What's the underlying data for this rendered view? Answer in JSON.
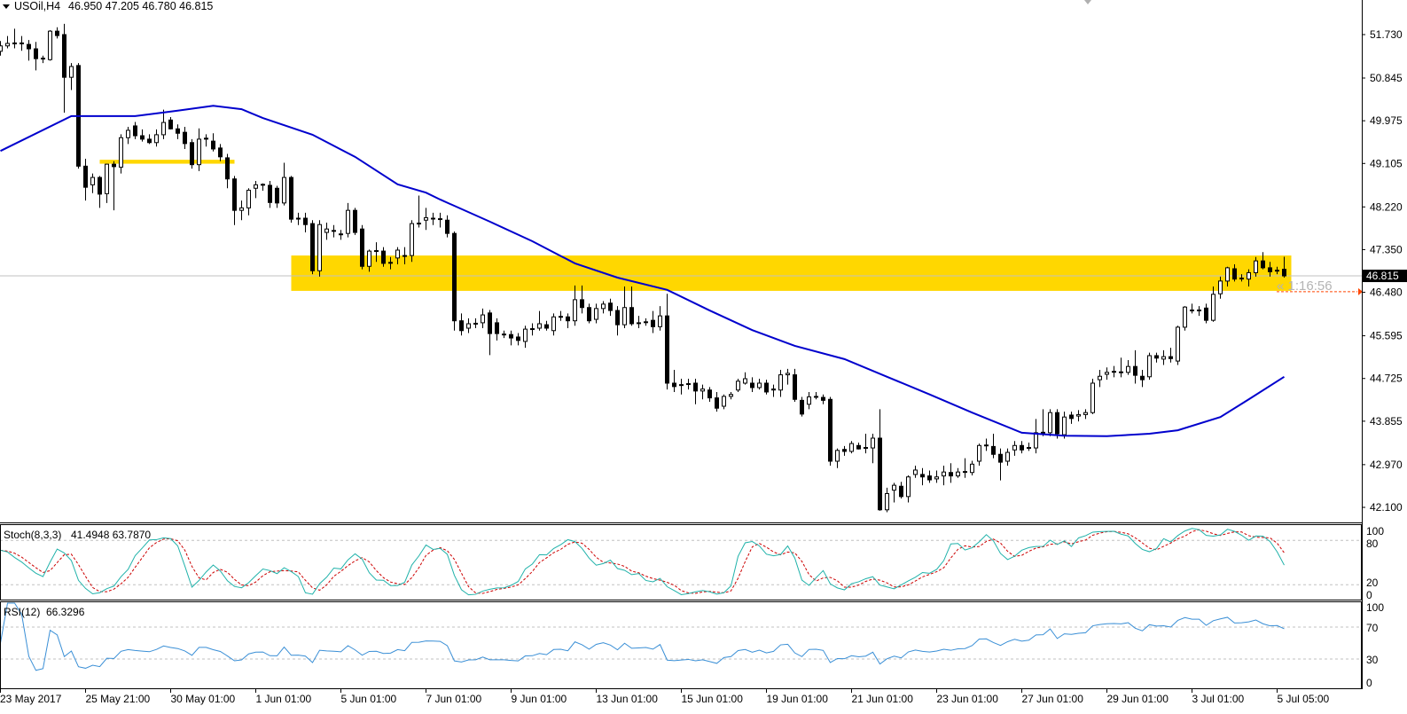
{
  "header": {
    "symbol_timeframe": "USOil,H4",
    "ohlc": "46.950 47.205 46.780 46.815",
    "menu_icon": "triangle-down-icon"
  },
  "stoch_header": {
    "label": "Stoch(8,3,3)",
    "values": "41.4948 63.7870"
  },
  "rsi_header": {
    "label": "RSI(12)",
    "values": "66.3296"
  },
  "current_price_label": "46.815",
  "countdown": "« 1:16:56",
  "colors": {
    "bull_body": "#ffffff",
    "bear_body": "#000000",
    "wick": "#000000",
    "moving_average": "#0000cd",
    "zone": "#ffd700",
    "stoch_main": "#20b2aa",
    "stoch_signal": "#cc0000",
    "rsi": "#3a8fd6",
    "bid_line": "#c0c0c0",
    "ask_line": "#ff4500",
    "level_line": "#c0c0c0",
    "price_box": "#000000"
  },
  "chart_data": {
    "type": "candlestick",
    "symbol": "USOil",
    "timeframe": "H4",
    "price_axis_ticks": [
      "51.730",
      "50.845",
      "49.975",
      "49.105",
      "48.220",
      "47.350",
      "46.480",
      "45.595",
      "44.725",
      "43.855",
      "42.970",
      "42.100"
    ],
    "time_axis_labels": [
      "23 May 2017",
      "25 May 21:00",
      "30 May 01:00",
      "1 Jun 01:00",
      "5 Jun 01:00",
      "7 Jun 01:00",
      "9 Jun 01:00",
      "13 Jun 01:00",
      "15 Jun 01:00",
      "19 Jun 01:00",
      "21 Jun 01:00",
      "23 Jun 01:00",
      "27 Jun 01:00",
      "29 Jun 01:00",
      "3 Jul 01:00",
      "5 Jul 05:00"
    ],
    "ylim": [
      41.95,
      52.45
    ],
    "current_price": 46.815,
    "candles_ohlc": [
      [
        51.39,
        51.6,
        51.3,
        51.5
      ],
      [
        51.5,
        51.7,
        51.45,
        51.55
      ],
      [
        51.55,
        51.85,
        51.45,
        51.56
      ],
      [
        51.56,
        51.7,
        51.4,
        51.55
      ],
      [
        51.53,
        51.62,
        51.2,
        51.44
      ],
      [
        51.44,
        51.58,
        51.0,
        51.24
      ],
      [
        51.24,
        51.3,
        51.15,
        51.25
      ],
      [
        51.22,
        51.82,
        51.2,
        51.8
      ],
      [
        51.8,
        51.88,
        51.65,
        51.71
      ],
      [
        51.73,
        51.95,
        50.14,
        50.86
      ],
      [
        50.86,
        51.15,
        50.6,
        51.08
      ],
      [
        51.1,
        51.15,
        49.0,
        49.05
      ],
      [
        49.05,
        49.2,
        48.35,
        48.62
      ],
      [
        48.67,
        48.9,
        48.5,
        48.82
      ],
      [
        48.82,
        48.85,
        48.2,
        48.48
      ],
      [
        48.49,
        49.1,
        48.3,
        49.09
      ],
      [
        49.09,
        49.15,
        48.15,
        49.04
      ],
      [
        49.03,
        49.7,
        48.9,
        49.63
      ],
      [
        49.63,
        49.85,
        49.5,
        49.78
      ],
      [
        49.87,
        49.95,
        49.6,
        49.67
      ],
      [
        49.67,
        49.8,
        49.55,
        49.6
      ],
      [
        49.6,
        49.7,
        49.5,
        49.53
      ],
      [
        49.53,
        49.8,
        49.45,
        49.69
      ],
      [
        49.69,
        50.2,
        49.6,
        49.94
      ],
      [
        49.99,
        50.05,
        49.8,
        49.81
      ],
      [
        49.81,
        49.9,
        49.6,
        49.72
      ],
      [
        49.74,
        49.85,
        49.4,
        49.51
      ],
      [
        49.53,
        49.6,
        49.0,
        49.08
      ],
      [
        49.08,
        49.82,
        48.95,
        49.6
      ],
      [
        49.62,
        49.7,
        49.45,
        49.6
      ],
      [
        49.56,
        49.72,
        49.35,
        49.4
      ],
      [
        49.42,
        49.5,
        49.15,
        49.24
      ],
      [
        49.22,
        49.3,
        48.6,
        48.79
      ],
      [
        48.79,
        48.85,
        47.85,
        48.15
      ],
      [
        48.15,
        48.35,
        47.95,
        48.2
      ],
      [
        48.2,
        48.6,
        48.05,
        48.56
      ],
      [
        48.6,
        48.75,
        48.4,
        48.67
      ],
      [
        48.67,
        48.7,
        48.55,
        48.68
      ],
      [
        48.66,
        48.75,
        48.2,
        48.31
      ],
      [
        48.6,
        48.65,
        48.2,
        48.3
      ],
      [
        48.3,
        49.12,
        48.25,
        48.82
      ],
      [
        48.82,
        48.85,
        47.9,
        47.97
      ],
      [
        47.99,
        48.1,
        47.85,
        47.98
      ],
      [
        47.99,
        48.1,
        47.7,
        47.86
      ],
      [
        47.88,
        47.95,
        46.85,
        46.92
      ],
      [
        46.92,
        47.95,
        46.8,
        47.86
      ],
      [
        47.7,
        47.9,
        47.55,
        47.77
      ],
      [
        47.74,
        47.85,
        47.6,
        47.73
      ],
      [
        47.66,
        47.75,
        47.55,
        47.67
      ],
      [
        47.68,
        48.3,
        47.6,
        48.15
      ],
      [
        48.15,
        48.2,
        47.65,
        47.7
      ],
      [
        47.77,
        47.85,
        46.95,
        47.01
      ],
      [
        47.01,
        47.35,
        46.9,
        47.32
      ],
      [
        47.32,
        47.5,
        47.1,
        47.33
      ],
      [
        47.32,
        47.4,
        47.0,
        47.07
      ],
      [
        47.08,
        47.2,
        46.95,
        47.09
      ],
      [
        47.18,
        47.4,
        47.05,
        47.34
      ],
      [
        47.22,
        47.4,
        47.05,
        47.23
      ],
      [
        47.23,
        47.95,
        47.1,
        47.88
      ],
      [
        47.88,
        48.45,
        47.8,
        47.89
      ],
      [
        47.95,
        48.2,
        47.75,
        48.0
      ],
      [
        47.98,
        48.1,
        47.85,
        47.99
      ],
      [
        47.98,
        48.1,
        47.8,
        47.97
      ],
      [
        47.95,
        48.05,
        47.6,
        47.68
      ],
      [
        47.68,
        47.72,
        45.7,
        45.9
      ],
      [
        45.9,
        46.05,
        45.6,
        45.7
      ],
      [
        45.75,
        45.95,
        45.65,
        45.84
      ],
      [
        45.84,
        45.95,
        45.75,
        45.85
      ],
      [
        45.86,
        46.15,
        45.75,
        46.02
      ],
      [
        46.06,
        46.12,
        45.2,
        45.64
      ],
      [
        45.86,
        45.95,
        45.5,
        45.64
      ],
      [
        45.62,
        45.7,
        45.55,
        45.63
      ],
      [
        45.62,
        45.7,
        45.4,
        45.55
      ],
      [
        45.57,
        45.65,
        45.4,
        45.5
      ],
      [
        45.48,
        45.8,
        45.35,
        45.73
      ],
      [
        45.73,
        45.85,
        45.6,
        45.74
      ],
      [
        45.75,
        46.1,
        45.7,
        45.84
      ],
      [
        45.82,
        45.9,
        45.7,
        45.75
      ],
      [
        45.7,
        46.05,
        45.6,
        45.98
      ],
      [
        45.98,
        46.1,
        45.9,
        45.99
      ],
      [
        45.98,
        46.05,
        45.75,
        45.9
      ],
      [
        45.9,
        46.62,
        45.8,
        46.33
      ],
      [
        46.33,
        46.62,
        46.05,
        46.17
      ],
      [
        46.17,
        46.25,
        45.85,
        45.9
      ],
      [
        45.93,
        46.25,
        45.85,
        46.15
      ],
      [
        46.15,
        46.3,
        46.05,
        46.24
      ],
      [
        46.26,
        46.35,
        46.0,
        46.11
      ],
      [
        46.11,
        46.2,
        45.6,
        45.82
      ],
      [
        45.82,
        46.6,
        45.75,
        46.17
      ],
      [
        46.17,
        46.6,
        45.8,
        45.84
      ],
      [
        45.86,
        46.0,
        45.75,
        45.86
      ],
      [
        45.87,
        45.95,
        45.8,
        45.88
      ],
      [
        45.91,
        46.1,
        45.65,
        45.78
      ],
      [
        45.78,
        46.2,
        45.7,
        46.0
      ],
      [
        46.0,
        46.45,
        44.5,
        44.63
      ],
      [
        44.63,
        44.9,
        44.45,
        44.56
      ],
      [
        44.6,
        44.72,
        44.4,
        44.59
      ],
      [
        44.61,
        44.72,
        44.5,
        44.62
      ],
      [
        44.63,
        44.72,
        44.2,
        44.47
      ],
      [
        44.47,
        44.6,
        44.3,
        44.51
      ],
      [
        44.49,
        44.55,
        44.25,
        44.33
      ],
      [
        44.33,
        44.45,
        44.05,
        44.12
      ],
      [
        44.16,
        44.4,
        44.1,
        44.36
      ],
      [
        44.36,
        44.45,
        44.3,
        44.4
      ],
      [
        44.49,
        44.72,
        44.45,
        44.67
      ],
      [
        44.63,
        44.85,
        44.6,
        44.72
      ],
      [
        44.63,
        44.75,
        44.45,
        44.54
      ],
      [
        44.54,
        44.72,
        44.5,
        44.63
      ],
      [
        44.63,
        44.7,
        44.4,
        44.45
      ],
      [
        44.49,
        44.6,
        44.35,
        44.51
      ],
      [
        44.49,
        44.9,
        44.35,
        44.8
      ],
      [
        44.8,
        44.92,
        44.6,
        44.83
      ],
      [
        44.8,
        44.92,
        44.25,
        44.3
      ],
      [
        44.28,
        44.35,
        43.95,
        44.0
      ],
      [
        44.2,
        44.45,
        44.1,
        44.35
      ],
      [
        44.35,
        44.45,
        44.3,
        44.36
      ],
      [
        44.34,
        44.4,
        44.2,
        44.28
      ],
      [
        44.3,
        44.35,
        42.95,
        43.04
      ],
      [
        43.04,
        43.3,
        42.9,
        43.26
      ],
      [
        43.28,
        43.35,
        43.15,
        43.24
      ],
      [
        43.24,
        43.45,
        43.2,
        43.4
      ],
      [
        43.36,
        43.42,
        43.28,
        43.29
      ],
      [
        43.31,
        43.6,
        43.2,
        43.32
      ],
      [
        43.31,
        43.6,
        43.0,
        43.51
      ],
      [
        43.51,
        44.1,
        42.03,
        42.05
      ],
      [
        42.05,
        42.5,
        42.0,
        42.38
      ],
      [
        42.45,
        42.6,
        42.2,
        42.55
      ],
      [
        42.53,
        42.62,
        42.28,
        42.32
      ],
      [
        42.32,
        42.75,
        42.2,
        42.72
      ],
      [
        42.77,
        42.95,
        42.7,
        42.86
      ],
      [
        42.77,
        42.9,
        42.55,
        42.72
      ],
      [
        42.74,
        42.85,
        42.6,
        42.66
      ],
      [
        42.68,
        42.85,
        42.6,
        42.72
      ],
      [
        42.74,
        42.95,
        42.55,
        42.82
      ],
      [
        42.81,
        43.0,
        42.6,
        42.74
      ],
      [
        42.74,
        42.9,
        42.7,
        42.82
      ],
      [
        42.82,
        43.1,
        42.7,
        42.83
      ],
      [
        42.81,
        43.05,
        42.75,
        42.98
      ],
      [
        43.04,
        43.4,
        42.95,
        43.36
      ],
      [
        43.36,
        43.5,
        43.25,
        43.37
      ],
      [
        43.34,
        43.6,
        43.1,
        43.18
      ],
      [
        43.18,
        43.3,
        42.65,
        43.02
      ],
      [
        43.04,
        43.3,
        42.95,
        43.22
      ],
      [
        43.27,
        43.45,
        43.15,
        43.36
      ],
      [
        43.36,
        43.45,
        43.2,
        43.27
      ],
      [
        43.31,
        43.42,
        43.25,
        43.32
      ],
      [
        43.31,
        43.9,
        43.2,
        43.62
      ],
      [
        43.62,
        44.1,
        43.55,
        43.63
      ],
      [
        43.62,
        44.1,
        43.55,
        44.03
      ],
      [
        44.03,
        44.1,
        43.5,
        43.6
      ],
      [
        43.58,
        44.05,
        43.5,
        43.94
      ],
      [
        43.98,
        44.05,
        43.8,
        43.91
      ],
      [
        43.96,
        44.08,
        43.85,
        43.99
      ],
      [
        43.99,
        44.1,
        43.9,
        44.03
      ],
      [
        44.03,
        44.72,
        44.0,
        44.63
      ],
      [
        44.7,
        44.9,
        44.55,
        44.77
      ],
      [
        44.81,
        44.95,
        44.7,
        44.85
      ],
      [
        44.86,
        44.98,
        44.75,
        44.87
      ],
      [
        44.85,
        45.15,
        44.75,
        44.86
      ],
      [
        44.85,
        45.1,
        44.8,
        44.97
      ],
      [
        44.97,
        45.3,
        44.62,
        44.79
      ],
      [
        44.77,
        44.9,
        44.55,
        44.7
      ],
      [
        44.76,
        45.25,
        44.7,
        45.19
      ],
      [
        45.19,
        45.25,
        45.05,
        45.14
      ],
      [
        45.12,
        45.3,
        45.0,
        45.17
      ],
      [
        45.17,
        45.35,
        45.05,
        45.13
      ],
      [
        45.08,
        45.8,
        45.0,
        45.77
      ],
      [
        45.77,
        46.2,
        45.7,
        46.18
      ],
      [
        46.11,
        46.25,
        46.05,
        46.12
      ],
      [
        46.11,
        46.2,
        46.0,
        46.12
      ],
      [
        46.16,
        46.25,
        45.85,
        45.91
      ],
      [
        45.91,
        46.6,
        45.88,
        46.44
      ],
      [
        46.45,
        46.8,
        46.35,
        46.71
      ],
      [
        46.71,
        47.0,
        46.6,
        46.98
      ],
      [
        46.96,
        47.05,
        46.7,
        46.75
      ],
      [
        46.76,
        46.85,
        46.7,
        46.77
      ],
      [
        46.75,
        46.95,
        46.6,
        46.88
      ],
      [
        46.88,
        47.2,
        46.8,
        47.12
      ],
      [
        47.12,
        47.3,
        46.95,
        46.98
      ],
      [
        46.98,
        47.1,
        46.8,
        46.9
      ],
      [
        46.92,
        47.0,
        46.85,
        46.93
      ],
      [
        46.95,
        47.205,
        46.78,
        46.815
      ]
    ],
    "moving_average_points": [
      [
        0,
        49.36
      ],
      [
        10,
        50.07
      ],
      [
        19,
        50.07
      ],
      [
        25,
        50.18
      ],
      [
        30,
        50.28
      ],
      [
        34,
        50.21
      ],
      [
        37,
        50.03
      ],
      [
        44,
        49.69
      ],
      [
        50,
        49.24
      ],
      [
        56,
        48.68
      ],
      [
        60,
        48.51
      ],
      [
        62,
        48.37
      ],
      [
        69,
        47.92
      ],
      [
        75,
        47.52
      ],
      [
        81,
        47.07
      ],
      [
        87,
        46.78
      ],
      [
        94,
        46.53
      ],
      [
        100,
        46.11
      ],
      [
        106,
        45.71
      ],
      [
        112,
        45.39
      ],
      [
        119,
        45.12
      ],
      [
        125,
        44.76
      ],
      [
        131,
        44.4
      ],
      [
        137,
        44.03
      ],
      [
        144,
        43.62
      ],
      [
        150,
        43.56
      ],
      [
        156,
        43.55
      ],
      [
        162,
        43.6
      ],
      [
        166,
        43.67
      ],
      [
        172,
        43.94
      ],
      [
        176,
        44.3
      ],
      [
        181,
        44.76
      ]
    ],
    "zones": [
      {
        "from_bar": 41,
        "to_bar": 182,
        "price_low": 46.51,
        "price_high": 47.23
      },
      {
        "from_bar": 14,
        "to_bar": 33,
        "price_low": 49.1,
        "price_high": 49.18
      }
    ],
    "stochastic": {
      "k_period": 8,
      "d_period": 3,
      "slowing": 3,
      "levels": [
        20,
        80
      ],
      "scale_labels": [
        "100",
        "80",
        "20",
        "0"
      ]
    },
    "rsi": {
      "period": 12,
      "levels": [
        30,
        70
      ],
      "scale_labels": [
        "100",
        "70",
        "30",
        "0"
      ]
    }
  }
}
